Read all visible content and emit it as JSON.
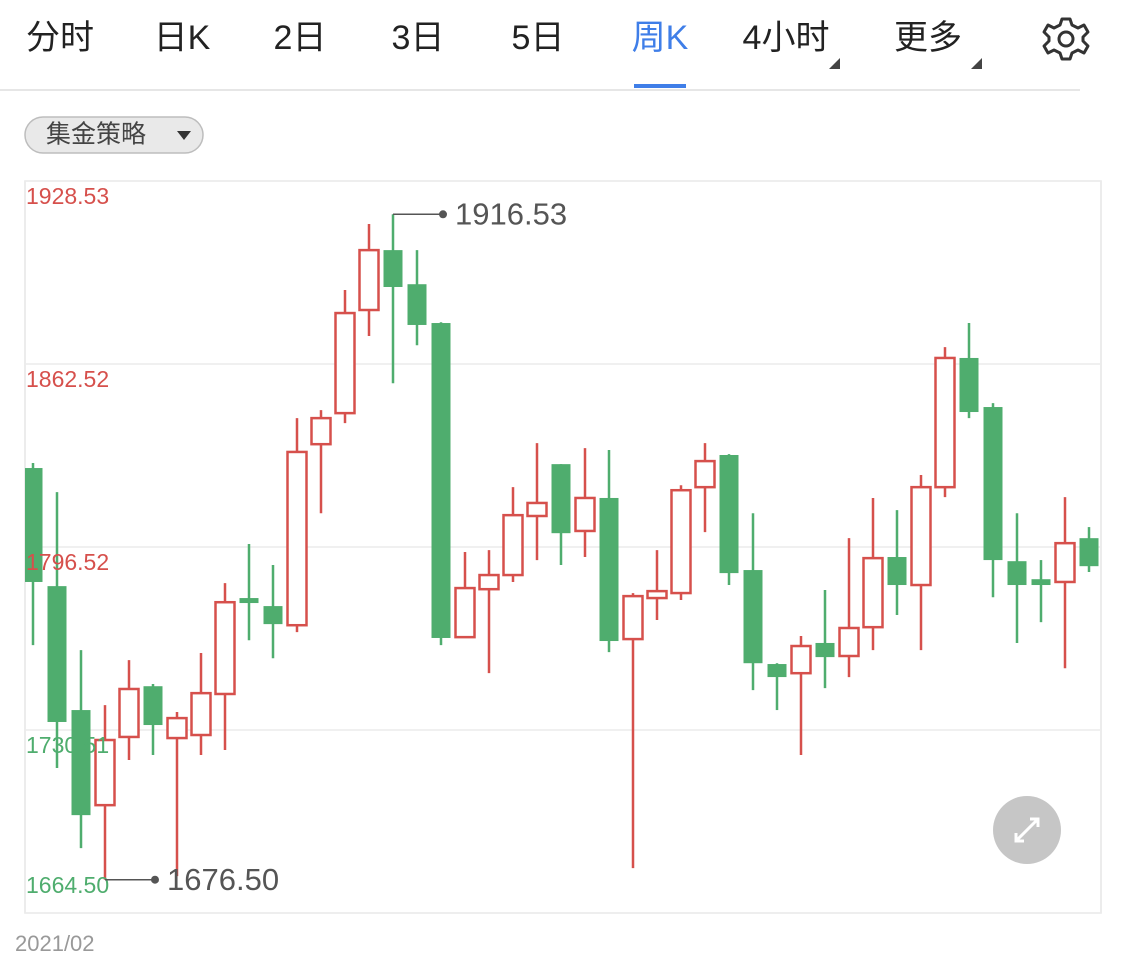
{
  "tabs": [
    {
      "label": "分时"
    },
    {
      "label": "日K"
    },
    {
      "label": "2日"
    },
    {
      "label": "3日"
    },
    {
      "label": "5日"
    },
    {
      "label": "周K",
      "active": true
    },
    {
      "label": "4小时",
      "dropdown": true
    },
    {
      "label": "更多",
      "dropdown": true
    }
  ],
  "strategy_button": "集金策略",
  "chart_data": {
    "type": "candlestick",
    "up_color": "#d6504c",
    "down_color": "#4fad6e",
    "ylim": [
      1664.5,
      1928.53
    ],
    "yticks": [
      1928.53,
      1862.52,
      1796.52,
      1730.51,
      {
        "value": 1664.5,
        "label": "1664.50"
      }
    ],
    "grid": true,
    "date_label": "2021/02",
    "max_label": 1916.53,
    "min_label": {
      "value": 1676.5,
      "label": "1676.50"
    },
    "open": [
      1825.0,
      1782.4,
      1737.7,
      1703.4,
      1728.0,
      1746.3,
      1727.6,
      1728.7,
      1743.5,
      1778.1,
      1775.2,
      1768.3,
      1833.6,
      1844.8,
      1882.0,
      1903.6,
      1891.3,
      1877.3,
      1764.0,
      1781.3,
      1786.4,
      1807.7,
      1826.4,
      1802.3,
      1814.2,
      1763.3,
      1778.1,
      1779.9,
      1818.1,
      1829.7,
      1788.2,
      1754.3,
      1751.0,
      1761.9,
      1757.2,
      1767.6,
      1792.9,
      1782.8,
      1818.1,
      1864.7,
      1847.0,
      1791.4,
      1784.9,
      1783.9,
      1799.7
    ],
    "high": [
      1826.8,
      1816.3,
      1759.3,
      1739.5,
      1755.7,
      1747.1,
      1737.0,
      1758.3,
      1783.5,
      1797.6,
      1790.0,
      1843.0,
      1845.9,
      1889.2,
      1913.0,
      1916.53,
      1903.6,
      1877.6,
      1794.7,
      1795.4,
      1818.1,
      1834.0,
      1826.4,
      1832.2,
      1831.5,
      1779.9,
      1795.4,
      1818.8,
      1834.0,
      1830.0,
      1808.7,
      1754.6,
      1764.4,
      1781.0,
      1799.7,
      1814.2,
      1809.8,
      1822.5,
      1868.6,
      1877.3,
      1848.4,
      1808.7,
      1791.8,
      1814.5,
      1803.7
    ],
    "low": [
      1761.1,
      1716.8,
      1687.9,
      1676.5,
      1719.7,
      1721.5,
      1677.8,
      1721.5,
      1723.3,
      1762.9,
      1756.4,
      1765.8,
      1808.7,
      1841.2,
      1872.6,
      1855.6,
      1869.3,
      1761.1,
      1763.7,
      1751.0,
      1783.9,
      1791.8,
      1790.0,
      1792.9,
      1758.6,
      1680.7,
      1770.2,
      1777.4,
      1801.9,
      1782.8,
      1744.9,
      1737.7,
      1721.5,
      1745.6,
      1749.6,
      1759.3,
      1772.0,
      1759.3,
      1814.5,
      1843.0,
      1778.4,
      1761.9,
      1769.4,
      1752.8,
      1787.5
    ],
    "close": [
      1783.9,
      1733.4,
      1699.8,
      1726.9,
      1745.3,
      1732.3,
      1734.8,
      1743.8,
      1776.6,
      1776.3,
      1768.7,
      1830.8,
      1843.0,
      1880.9,
      1903.6,
      1890.3,
      1876.6,
      1763.7,
      1781.7,
      1786.4,
      1808.0,
      1812.4,
      1801.5,
      1814.2,
      1762.6,
      1778.8,
      1780.6,
      1817.0,
      1827.5,
      1787.1,
      1754.6,
      1749.6,
      1760.8,
      1756.8,
      1767.3,
      1792.5,
      1782.8,
      1818.1,
      1864.7,
      1845.2,
      1791.8,
      1782.8,
      1782.8,
      1797.9,
      1789.6
    ]
  }
}
